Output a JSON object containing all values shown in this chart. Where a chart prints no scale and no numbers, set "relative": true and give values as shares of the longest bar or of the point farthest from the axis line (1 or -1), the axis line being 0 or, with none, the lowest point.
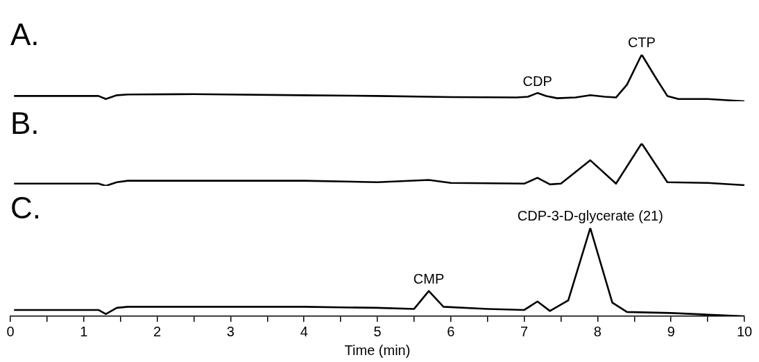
{
  "chart_data": [
    {
      "type": "line",
      "title": "A.",
      "relative": true,
      "xlim": [
        0,
        10
      ],
      "tick_labels": false,
      "grid": false,
      "marker": "none",
      "line_style": "solid",
      "series": [
        {
          "color": "#000000",
          "x": [
            0.05,
            1.2,
            1.3,
            1.45,
            1.6,
            2.5,
            4,
            5,
            6,
            6.9,
            7.05,
            7.18,
            7.3,
            7.45,
            7.7,
            7.9,
            8.1,
            8.25,
            8.4,
            8.6,
            8.8,
            8.95,
            9.1,
            9.5,
            10
          ],
          "values": [
            0.113,
            0.113,
            0.048,
            0.129,
            0.145,
            0.153,
            0.129,
            0.113,
            0.089,
            0.081,
            0.097,
            0.177,
            0.113,
            0.065,
            0.081,
            0.129,
            0.097,
            0.081,
            0.355,
            1,
            0.484,
            0.113,
            0.048,
            0.048,
            0
          ]
        }
      ],
      "annotations": [
        {
          "text": "CDP",
          "x": 7.18,
          "y": 0.177
        },
        {
          "text": "CTP",
          "x": 8.6,
          "y": 1
        }
      ]
    },
    {
      "type": "line",
      "title": "B.",
      "relative": true,
      "xlim": [
        0,
        10
      ],
      "tick_labels": false,
      "grid": false,
      "marker": "none",
      "line_style": "solid",
      "series": [
        {
          "color": "#000000",
          "x": [
            0.05,
            1.2,
            1.3,
            1.45,
            1.6,
            2.5,
            4,
            5,
            5.7,
            6,
            7,
            7.18,
            7.35,
            7.5,
            7.9,
            8.25,
            8.6,
            8.95,
            9.5,
            10
          ],
          "values": [
            0.052,
            0.052,
            0,
            0.086,
            0.121,
            0.121,
            0.121,
            0.086,
            0.138,
            0.069,
            0.052,
            0.19,
            0.034,
            0.052,
            0.603,
            0.052,
            1,
            0.086,
            0.069,
            0.017
          ]
        }
      ]
    },
    {
      "type": "line",
      "title": "C.",
      "relative": true,
      "xlim": [
        0,
        10
      ],
      "xticks": [
        0,
        {
          "value": 0.5,
          "label": null
        },
        1,
        {
          "value": 1.5,
          "label": null
        },
        2,
        {
          "value": 2.5,
          "label": null
        },
        3,
        {
          "value": 3.5,
          "label": null
        },
        4,
        {
          "value": 4.5,
          "label": null
        },
        5,
        {
          "value": 5.5,
          "label": null
        },
        6,
        {
          "value": 6.5,
          "label": null
        },
        7,
        {
          "value": 7.5,
          "label": null
        },
        8,
        {
          "value": 8.5,
          "label": null
        },
        9,
        {
          "value": 9.5,
          "label": null
        },
        10
      ],
      "tick_labels": "x",
      "grid": false,
      "marker": "none",
      "line_style": "solid",
      "xlabel": "Time (min)",
      "series": [
        {
          "color": "#000000",
          "x": [
            0.05,
            1.2,
            1.3,
            1.45,
            1.6,
            2.5,
            4,
            5,
            5.5,
            5.7,
            5.9,
            6.5,
            7,
            7.18,
            7.35,
            7.6,
            7.9,
            8.2,
            8.4,
            9,
            10
          ],
          "values": [
            0.071,
            0.071,
            0.024,
            0.095,
            0.107,
            0.107,
            0.107,
            0.095,
            0.083,
            0.286,
            0.107,
            0.083,
            0.071,
            0.167,
            0.06,
            0.179,
            1,
            0.155,
            0.048,
            0.036,
            0
          ]
        }
      ],
      "annotations": [
        {
          "text": "CMP",
          "x": 5.7,
          "y": 0.286
        },
        {
          "text": "CDP-3-D-glycerate (21)",
          "x": 7.9,
          "y": 1
        }
      ]
    }
  ]
}
